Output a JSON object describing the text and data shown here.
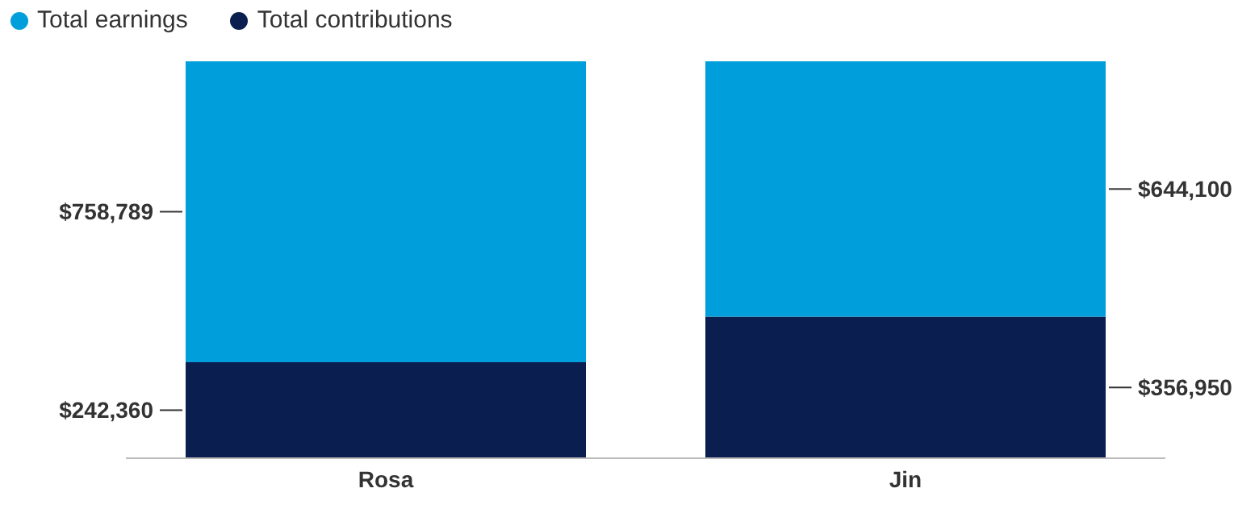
{
  "chart_data": {
    "type": "bar",
    "stacked": true,
    "categories": [
      "Rosa",
      "Jin"
    ],
    "series": [
      {
        "name": "Total contributions",
        "color": "#0a1f4f",
        "values": [
          242360,
          356950
        ],
        "value_labels": [
          "$242,360",
          "$356,950"
        ]
      },
      {
        "name": "Total earnings",
        "color": "#009fdb",
        "values": [
          758789,
          644100
        ],
        "value_labels": [
          "$758,789",
          "$644,100"
        ]
      }
    ],
    "legend": "top left"
  }
}
